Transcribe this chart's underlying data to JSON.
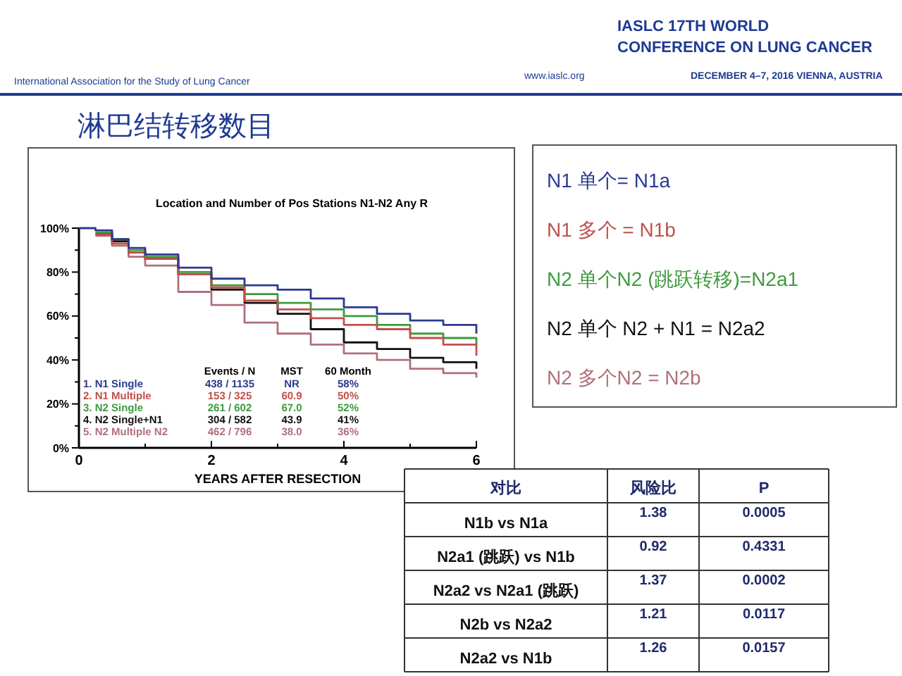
{
  "chart_data": {
    "type": "step",
    "title": "Location and Number of Pos Stations N1-N2 Any R",
    "xlabel": "YEARS AFTER RESECTION",
    "x": [
      0,
      0.25,
      0.5,
      0.75,
      1,
      1.5,
      2,
      2.5,
      3,
      3.5,
      4,
      4.5,
      5,
      5.5,
      6
    ],
    "series": [
      {
        "name": "1. N1 Single",
        "color": "#2b3a8f",
        "values": [
          100,
          99,
          95,
          91,
          88,
          82,
          77,
          74,
          72,
          68,
          64,
          61,
          58,
          56,
          52
        ]
      },
      {
        "name": "2. N1 Multiple",
        "color": "#c0504d",
        "values": [
          null,
          97,
          93,
          89,
          86,
          79,
          73,
          67,
          63,
          59,
          56,
          54,
          50,
          47,
          42
        ]
      },
      {
        "name": "3. N2 Single",
        "color": "#3f9a3f",
        "values": [
          null,
          98,
          95,
          90,
          87,
          80,
          74,
          70,
          66,
          63,
          60,
          56,
          52,
          50,
          47
        ]
      },
      {
        "name": "4. N2 Single+N1",
        "color": "#111111",
        "values": [
          null,
          97.5,
          94,
          89,
          86,
          79,
          72,
          66,
          61,
          54,
          48,
          45,
          41,
          39,
          36
        ]
      },
      {
        "name": "5. N2 Multiple N2",
        "color": "#b0707a",
        "values": [
          null,
          96.5,
          92,
          87,
          83,
          71,
          65,
          57,
          52,
          47,
          43,
          40,
          36,
          34,
          32
        ]
      }
    ],
    "xlim": [
      0,
      6
    ],
    "xticks": [
      0,
      {
        "value": 1,
        "label": null
      },
      2,
      {
        "value": 3,
        "label": null
      },
      4,
      {
        "value": 5,
        "label": null
      },
      6
    ],
    "ylim": [
      0,
      100
    ],
    "yticks": [
      {
        "value": 0,
        "label": "0%"
      },
      {
        "value": 10,
        "label": null
      },
      {
        "value": 20,
        "label": "20%"
      },
      {
        "value": 30,
        "label": null
      },
      {
        "value": 40,
        "label": "40%"
      },
      {
        "value": 50,
        "label": null
      },
      {
        "value": 60,
        "label": "60%"
      },
      {
        "value": 70,
        "label": null
      },
      {
        "value": 80,
        "label": "80%"
      },
      {
        "value": 90,
        "label": null
      },
      {
        "value": 100,
        "label": "100%"
      }
    ],
    "legend": "bottom left",
    "grid": false,
    "annotations": [
      "淋巴结转移数目",
      "International Association for the Study of Lung Cancer",
      "IASLC 17TH WORLD",
      "CONFERENCE ON LUNG CANCER",
      "www.iaslc.org",
      "DECEMBER 4–7, 2016 VIENNA, AUSTRIA",
      "N1  单个= N1a",
      "N1  多个 = N1b",
      "N2  单个N2 (跳跃转移)=N2a1",
      "N2  单个 N2 + N1 =  N2a2",
      "N2  多个N2 = N2b",
      "Events / N",
      "MST",
      "60 Month",
      "438 / 1135",
      "NR",
      "58%",
      "153 / 325",
      "60.9",
      "50%",
      "261 / 602",
      "67.0",
      "52%",
      "304 / 582",
      "43.9",
      "41%",
      "462 / 796",
      "38.0",
      "36%",
      "对比",
      "风险比",
      "P",
      "N1b vs N1a",
      "1.38",
      "0.0005",
      "N2a1 (跳跃) vs N1b",
      "0.92",
      "0.4331",
      "N2a2 vs N2a1 (跳跃)",
      "1.37",
      "0.0002",
      "N2b vs N2a2",
      "1.21",
      "0.0117",
      "N2a2 vs N1b",
      "1.26",
      "0.0157"
    ]
  }
}
